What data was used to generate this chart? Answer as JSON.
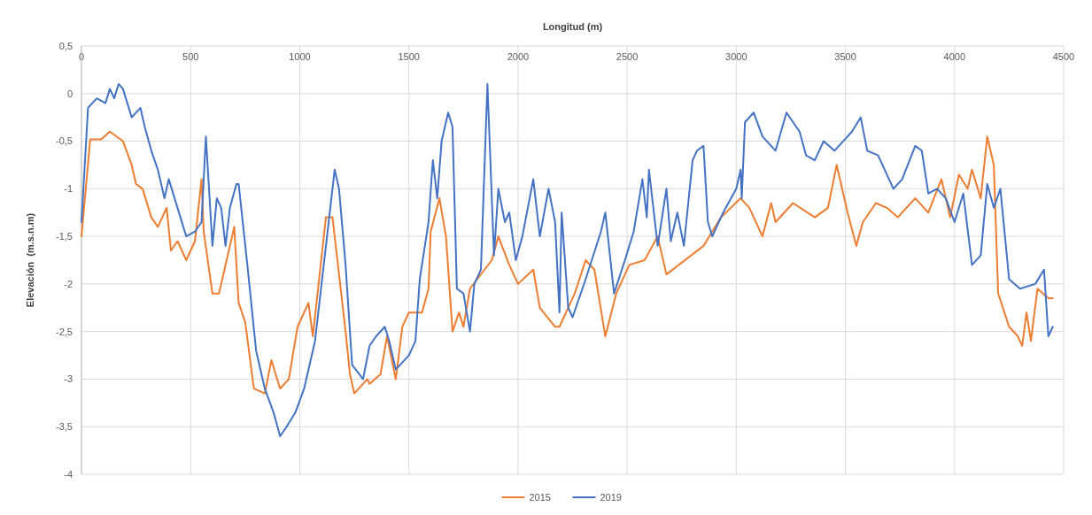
{
  "chart_data": {
    "type": "line",
    "xlabel": "Longitud (m)",
    "ylabel": "Elevación  (m.s.n.m)",
    "xlim": [
      0,
      4500
    ],
    "xticks": [
      0,
      500,
      1000,
      1500,
      2000,
      2500,
      3000,
      3500,
      4000,
      4500
    ],
    "ylim": [
      -4,
      0.5
    ],
    "yticks": [
      {
        "value": 0.5,
        "label": "0,5"
      },
      0,
      {
        "value": -0.5,
        "label": "-0,5"
      },
      -1,
      {
        "value": -1.5,
        "label": "-1,5"
      },
      -2,
      {
        "value": -2.5,
        "label": "-2,5"
      },
      -3,
      {
        "value": -3.5,
        "label": "-3,5"
      },
      -4
    ],
    "grid": true,
    "legend": "bottom",
    "marker": "none",
    "line_style": "solid",
    "series": [
      {
        "name": "2015",
        "color": "#ed7d31",
        "x": [
          0,
          40,
          90,
          130,
          190,
          230,
          250,
          280,
          320,
          350,
          390,
          410,
          440,
          480,
          520,
          550,
          560,
          600,
          630,
          700,
          720,
          750,
          790,
          840,
          870,
          910,
          950,
          990,
          1040,
          1060,
          1120,
          1150,
          1210,
          1230,
          1250,
          1310,
          1320,
          1370,
          1400,
          1440,
          1470,
          1500,
          1560,
          1590,
          1600,
          1640,
          1670,
          1700,
          1730,
          1750,
          1780,
          1880,
          1910,
          1960,
          2000,
          2070,
          2100,
          2170,
          2190,
          2260,
          2310,
          2350,
          2400,
          2450,
          2510,
          2580,
          2640,
          2680,
          2850,
          2930,
          3020,
          3060,
          3120,
          3160,
          3180,
          3260,
          3360,
          3420,
          3460,
          3510,
          3550,
          3580,
          3640,
          3690,
          3740,
          3820,
          3880,
          3940,
          3980,
          4020,
          4060,
          4080,
          4120,
          4150,
          4180,
          4200,
          4250,
          4290,
          4310,
          4330,
          4350,
          4380,
          4430,
          4450
        ],
        "values": [
          -1.5,
          -0.48,
          -0.48,
          -0.4,
          -0.5,
          -0.75,
          -0.95,
          -1.0,
          -1.3,
          -1.4,
          -1.2,
          -1.65,
          -1.55,
          -1.75,
          -1.55,
          -0.9,
          -1.45,
          -2.1,
          -2.1,
          -1.4,
          -2.2,
          -2.4,
          -3.1,
          -3.15,
          -2.8,
          -3.1,
          -3.0,
          -2.45,
          -2.2,
          -2.55,
          -1.3,
          -1.3,
          -2.5,
          -2.95,
          -3.15,
          -3.0,
          -3.05,
          -2.95,
          -2.55,
          -3.0,
          -2.45,
          -2.3,
          -2.3,
          -2.05,
          -1.45,
          -1.1,
          -1.5,
          -2.5,
          -2.3,
          -2.45,
          -2.05,
          -1.75,
          -1.5,
          -1.8,
          -2.0,
          -1.85,
          -2.25,
          -2.45,
          -2.45,
          -2.1,
          -1.75,
          -1.85,
          -2.55,
          -2.1,
          -1.8,
          -1.75,
          -1.5,
          -1.9,
          -1.6,
          -1.3,
          -1.1,
          -1.2,
          -1.5,
          -1.15,
          -1.35,
          -1.15,
          -1.3,
          -1.2,
          -0.75,
          -1.25,
          -1.6,
          -1.35,
          -1.15,
          -1.2,
          -1.3,
          -1.1,
          -1.25,
          -0.9,
          -1.3,
          -0.85,
          -1.0,
          -0.8,
          -1.1,
          -0.45,
          -0.75,
          -2.1,
          -2.45,
          -2.55,
          -2.65,
          -2.3,
          -2.6,
          -2.05,
          -2.15,
          -2.15
        ]
      },
      {
        "name": "2019",
        "color": "#4472c4",
        "x": [
          0,
          30,
          70,
          110,
          130,
          150,
          170,
          190,
          230,
          270,
          290,
          320,
          350,
          380,
          400,
          440,
          480,
          520,
          550,
          570,
          600,
          620,
          640,
          660,
          680,
          710,
          720,
          760,
          800,
          840,
          880,
          910,
          940,
          980,
          1020,
          1070,
          1100,
          1140,
          1160,
          1180,
          1210,
          1240,
          1290,
          1320,
          1350,
          1390,
          1410,
          1440,
          1500,
          1530,
          1550,
          1590,
          1610,
          1630,
          1650,
          1680,
          1700,
          1720,
          1750,
          1780,
          1800,
          1830,
          1860,
          1890,
          1910,
          1940,
          1960,
          1990,
          2020,
          2070,
          2100,
          2140,
          2170,
          2190,
          2200,
          2230,
          2250,
          2310,
          2380,
          2400,
          2440,
          2490,
          2530,
          2570,
          2590,
          2600,
          2640,
          2680,
          2700,
          2730,
          2760,
          2800,
          2820,
          2850,
          2870,
          2890,
          2940,
          3000,
          3020,
          3025,
          3040,
          3080,
          3120,
          3180,
          3230,
          3290,
          3320,
          3360,
          3400,
          3450,
          3490,
          3530,
          3570,
          3600,
          3650,
          3720,
          3760,
          3820,
          3850,
          3880,
          3920,
          3960,
          4000,
          4040,
          4080,
          4120,
          4150,
          4180,
          4210,
          4250,
          4300,
          4370,
          4410,
          4430,
          4450
        ],
        "values": [
          -1.35,
          -0.15,
          -0.05,
          -0.1,
          0.05,
          -0.05,
          0.1,
          0.05,
          -0.25,
          -0.15,
          -0.35,
          -0.6,
          -0.8,
          -1.1,
          -0.9,
          -1.2,
          -1.5,
          -1.45,
          -1.35,
          -0.45,
          -1.6,
          -1.1,
          -1.2,
          -1.6,
          -1.2,
          -0.95,
          -0.95,
          -1.8,
          -2.7,
          -3.1,
          -3.35,
          -3.6,
          -3.5,
          -3.35,
          -3.1,
          -2.6,
          -2.0,
          -1.2,
          -0.8,
          -1.0,
          -1.8,
          -2.85,
          -3.0,
          -2.65,
          -2.55,
          -2.45,
          -2.6,
          -2.9,
          -2.75,
          -2.6,
          -1.95,
          -1.35,
          -0.7,
          -1.1,
          -0.5,
          -0.2,
          -0.35,
          -2.05,
          -2.1,
          -2.5,
          -2.0,
          -1.85,
          0.1,
          -1.7,
          -1.0,
          -1.35,
          -1.25,
          -1.75,
          -1.5,
          -0.9,
          -1.5,
          -1.0,
          -1.35,
          -2.3,
          -1.25,
          -2.25,
          -2.35,
          -1.95,
          -1.45,
          -1.25,
          -2.1,
          -1.75,
          -1.45,
          -0.9,
          -1.3,
          -0.8,
          -1.6,
          -1.0,
          -1.55,
          -1.25,
          -1.6,
          -0.7,
          -0.6,
          -0.55,
          -1.35,
          -1.5,
          -1.25,
          -1.0,
          -0.8,
          -1.1,
          -0.3,
          -0.2,
          -0.45,
          -0.6,
          -0.2,
          -0.4,
          -0.65,
          -0.7,
          -0.5,
          -0.6,
          -0.5,
          -0.4,
          -0.25,
          -0.6,
          -0.65,
          -1.0,
          -0.9,
          -0.55,
          -0.6,
          -1.05,
          -1.0,
          -1.1,
          -1.35,
          -1.05,
          -1.8,
          -1.7,
          -0.95,
          -1.2,
          -1.0,
          -1.95,
          -2.05,
          -2.0,
          -1.85,
          -2.55,
          -2.45
        ]
      }
    ]
  }
}
